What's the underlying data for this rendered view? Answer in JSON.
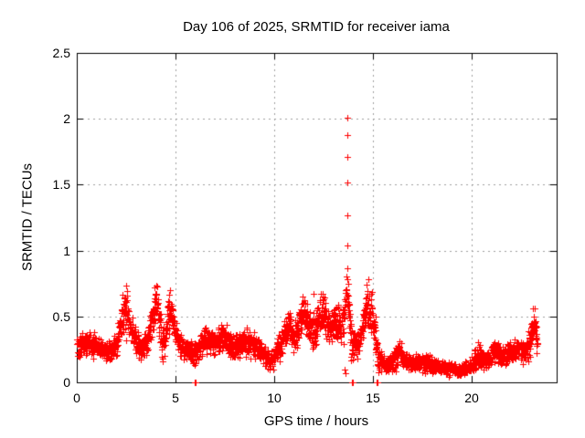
{
  "chart_data": {
    "type": "scatter",
    "title": "Day 106 of 2025, SRMTID for receiver iama",
    "xlabel": "GPS time / hours",
    "ylabel": "SRMTID / TECUs",
    "xlim": [
      0,
      24.33
    ],
    "ylim": [
      0,
      2.5
    ],
    "xticks": [
      {
        "value": 0,
        "label": "0"
      },
      {
        "value": 5,
        "label": "5"
      },
      {
        "value": 10,
        "label": "10"
      },
      {
        "value": 15,
        "label": "15"
      },
      {
        "value": 20,
        "label": "20"
      }
    ],
    "yticks": [
      {
        "value": 0,
        "label": "0"
      },
      {
        "value": 0.5,
        "label": "0.5"
      },
      {
        "value": 1,
        "label": "1"
      },
      {
        "value": 1.5,
        "label": "1.5"
      },
      {
        "value": 2,
        "label": "2"
      },
      {
        "value": 2.5,
        "label": "2.5"
      }
    ],
    "grid": {
      "show": true,
      "color": "#a0a0a0",
      "dash": [
        2,
        4
      ],
      "vertical_at": [
        5,
        10,
        15,
        20
      ],
      "horizontal_at": [
        0.5,
        1,
        1.5,
        2
      ]
    },
    "axis_color": "#000000",
    "text_color": "#000000",
    "background": "#ffffff",
    "marker": {
      "shape": "plus",
      "color": "#ff0000",
      "size": 7,
      "stroke": 1
    },
    "series": [
      {
        "name": "SRMTID",
        "x_start": 0.0,
        "x_end": 23.35,
        "sample_rate_per_hour": 120,
        "y_floor": 0.02,
        "seed": 1062025,
        "envelope_format": [
          "hour",
          "center",
          "half_spread"
        ],
        "envelope": [
          [
            0.0,
            0.27,
            0.11
          ],
          [
            0.3,
            0.3,
            0.16
          ],
          [
            0.6,
            0.28,
            0.13
          ],
          [
            1.0,
            0.27,
            0.11
          ],
          [
            1.4,
            0.24,
            0.11
          ],
          [
            1.7,
            0.22,
            0.1
          ],
          [
            2.0,
            0.3,
            0.13
          ],
          [
            2.25,
            0.42,
            0.2
          ],
          [
            2.45,
            0.6,
            0.3
          ],
          [
            2.6,
            0.5,
            0.22
          ],
          [
            2.75,
            0.38,
            0.15
          ],
          [
            3.0,
            0.32,
            0.15
          ],
          [
            3.3,
            0.24,
            0.12
          ],
          [
            3.6,
            0.33,
            0.15
          ],
          [
            3.85,
            0.48,
            0.22
          ],
          [
            4.05,
            0.6,
            0.27
          ],
          [
            4.2,
            0.42,
            0.22
          ],
          [
            4.35,
            0.28,
            0.18
          ],
          [
            4.55,
            0.42,
            0.18
          ],
          [
            4.75,
            0.55,
            0.22
          ],
          [
            4.95,
            0.42,
            0.16
          ],
          [
            5.15,
            0.3,
            0.13
          ],
          [
            5.5,
            0.24,
            0.11
          ],
          [
            5.9,
            0.21,
            0.12
          ],
          [
            6.2,
            0.26,
            0.11
          ],
          [
            6.5,
            0.33,
            0.13
          ],
          [
            6.8,
            0.3,
            0.13
          ],
          [
            7.1,
            0.31,
            0.13
          ],
          [
            7.4,
            0.35,
            0.15
          ],
          [
            7.7,
            0.3,
            0.13
          ],
          [
            8.0,
            0.26,
            0.13
          ],
          [
            8.4,
            0.3,
            0.13
          ],
          [
            8.8,
            0.31,
            0.15
          ],
          [
            9.2,
            0.26,
            0.12
          ],
          [
            9.6,
            0.19,
            0.1
          ],
          [
            9.9,
            0.16,
            0.09
          ],
          [
            10.2,
            0.24,
            0.13
          ],
          [
            10.5,
            0.34,
            0.17
          ],
          [
            10.75,
            0.42,
            0.21
          ],
          [
            11.0,
            0.32,
            0.15
          ],
          [
            11.25,
            0.44,
            0.2
          ],
          [
            11.5,
            0.52,
            0.19
          ],
          [
            11.75,
            0.42,
            0.18
          ],
          [
            12.0,
            0.36,
            0.2
          ],
          [
            12.25,
            0.47,
            0.2
          ],
          [
            12.45,
            0.57,
            0.22
          ],
          [
            12.65,
            0.47,
            0.18
          ],
          [
            12.9,
            0.41,
            0.18
          ],
          [
            13.1,
            0.46,
            0.18
          ],
          [
            13.35,
            0.41,
            0.2
          ],
          [
            13.55,
            0.48,
            0.26
          ],
          [
            13.7,
            0.76,
            0.22
          ],
          [
            13.85,
            0.38,
            0.28
          ],
          [
            14.1,
            0.26,
            0.16
          ],
          [
            14.4,
            0.34,
            0.13
          ],
          [
            14.65,
            0.56,
            0.26
          ],
          [
            14.9,
            0.55,
            0.25
          ],
          [
            15.1,
            0.38,
            0.22
          ],
          [
            15.3,
            0.17,
            0.13
          ],
          [
            15.6,
            0.13,
            0.09
          ],
          [
            16.0,
            0.15,
            0.09
          ],
          [
            16.35,
            0.24,
            0.15
          ],
          [
            16.6,
            0.16,
            0.09
          ],
          [
            17.0,
            0.14,
            0.08
          ],
          [
            17.4,
            0.16,
            0.1
          ],
          [
            17.8,
            0.15,
            0.1
          ],
          [
            18.2,
            0.13,
            0.08
          ],
          [
            18.6,
            0.11,
            0.07
          ],
          [
            19.0,
            0.1,
            0.07
          ],
          [
            19.4,
            0.09,
            0.06
          ],
          [
            19.8,
            0.11,
            0.07
          ],
          [
            20.1,
            0.14,
            0.09
          ],
          [
            20.35,
            0.21,
            0.13
          ],
          [
            20.6,
            0.16,
            0.1
          ],
          [
            20.9,
            0.19,
            0.11
          ],
          [
            21.2,
            0.24,
            0.13
          ],
          [
            21.5,
            0.2,
            0.11
          ],
          [
            21.8,
            0.21,
            0.12
          ],
          [
            22.1,
            0.24,
            0.13
          ],
          [
            22.4,
            0.26,
            0.13
          ],
          [
            22.7,
            0.23,
            0.13
          ],
          [
            22.95,
            0.3,
            0.16
          ],
          [
            23.15,
            0.45,
            0.21
          ],
          [
            23.3,
            0.33,
            0.14
          ],
          [
            23.35,
            0.3,
            0.12
          ]
        ],
        "outlier_points": [
          [
            13.72,
            2.01
          ],
          [
            13.72,
            1.88
          ],
          [
            13.72,
            1.71
          ],
          [
            13.73,
            1.52
          ],
          [
            13.73,
            1.27
          ],
          [
            13.72,
            1.04
          ],
          [
            12.0,
            0.67
          ],
          [
            13.58,
            0.1
          ],
          [
            13.62,
            0.07
          ]
        ],
        "zero_value_points_at_hours": [
          5.97,
          6.03,
          13.93,
          13.99,
          15.18,
          15.26
        ]
      }
    ]
  }
}
